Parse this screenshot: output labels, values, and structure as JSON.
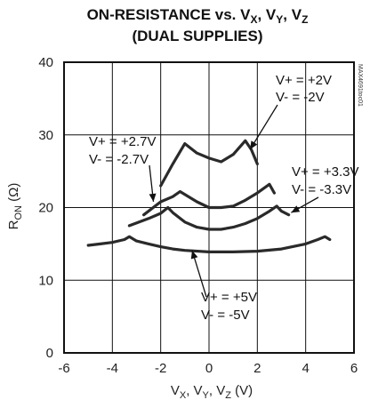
{
  "chart_data": {
    "type": "line",
    "title": "ON-RESISTANCE vs. V",
    "title_parts": {
      "sub_x": "X",
      "sep1": ", V",
      "sub_y": "Y",
      "sep2": ", V",
      "sub_z": "Z"
    },
    "subtitle": "(DUAL SUPPLIES)",
    "xlabel_parts": {
      "v1": "V",
      "s1": "X",
      "c1": ", V",
      "s2": "Y",
      "c2": ", V",
      "s3": "Z",
      "unit": " (V)"
    },
    "ylabel_parts": {
      "r": "R",
      "sub": "ON",
      "unit": " (Ω)"
    },
    "xlim": [
      -6,
      6
    ],
    "ylim": [
      0,
      40
    ],
    "xticks": [
      "-6",
      "-4",
      "-2",
      "0",
      "2",
      "4",
      "6"
    ],
    "yticks": [
      "0",
      "10",
      "20",
      "30",
      "40"
    ],
    "grid": true,
    "watermark": "MAX4691toc01",
    "series": [
      {
        "supply": [
          "V+ = +2V",
          "V- = -2V"
        ],
        "x": [
          -2.0,
          -1.5,
          -1.0,
          -0.5,
          0.0,
          0.5,
          1.0,
          1.5,
          1.75,
          2.0
        ],
        "y": [
          23.0,
          26.0,
          28.8,
          27.5,
          26.8,
          26.3,
          27.3,
          29.2,
          28.0,
          26.0
        ]
      },
      {
        "supply": [
          "V+ = +2.7V",
          "V- = -2.7V"
        ],
        "x": [
          -2.7,
          -2.0,
          -1.5,
          -1.2,
          -1.0,
          -0.5,
          0.0,
          0.5,
          1.0,
          1.5,
          2.0,
          2.5,
          2.7
        ],
        "y": [
          19.0,
          20.8,
          21.5,
          22.2,
          21.8,
          20.8,
          20.0,
          20.0,
          20.2,
          21.0,
          22.0,
          23.2,
          22.0
        ]
      },
      {
        "supply": [
          "V+ = +3.3V",
          "V- = -3.3V"
        ],
        "x": [
          -3.3,
          -2.5,
          -2.0,
          -1.7,
          -1.5,
          -1.0,
          -0.5,
          0.0,
          0.5,
          1.0,
          1.5,
          2.0,
          2.5,
          2.8,
          3.0,
          3.3
        ],
        "y": [
          17.5,
          18.5,
          19.2,
          20.0,
          19.3,
          18.0,
          17.3,
          17.0,
          17.0,
          17.3,
          17.8,
          18.5,
          19.5,
          20.2,
          19.5,
          19.0
        ]
      },
      {
        "supply": [
          "V+ = +5V",
          "V- = -5V"
        ],
        "x": [
          -5.0,
          -4.5,
          -4.0,
          -3.5,
          -3.3,
          -3.0,
          -2.5,
          -2.0,
          -1.5,
          -1.0,
          0.0,
          1.0,
          2.0,
          3.0,
          4.0,
          4.5,
          4.8,
          5.0
        ],
        "y": [
          14.8,
          15.0,
          15.2,
          15.6,
          16.0,
          15.4,
          15.0,
          14.6,
          14.3,
          14.1,
          13.9,
          13.9,
          14.0,
          14.3,
          15.0,
          15.6,
          16.0,
          15.6
        ]
      }
    ],
    "annotations": [
      {
        "lines": [
          "V+ = +2V",
          "V- = -2V"
        ],
        "arrow_to": [
          1.7,
          28.0
        ]
      },
      {
        "lines": [
          "V+ = +2.7V",
          "V- = -2.7V"
        ],
        "arrow_to": [
          -2.3,
          20.8
        ]
      },
      {
        "lines": [
          "V+ = +3.3V",
          "V- = -3.3V"
        ],
        "arrow_to": [
          3.4,
          19.3
        ]
      },
      {
        "lines": [
          "V+ = +5V",
          "V- = -5V"
        ],
        "arrow_to": [
          -0.7,
          14.1
        ]
      }
    ]
  }
}
